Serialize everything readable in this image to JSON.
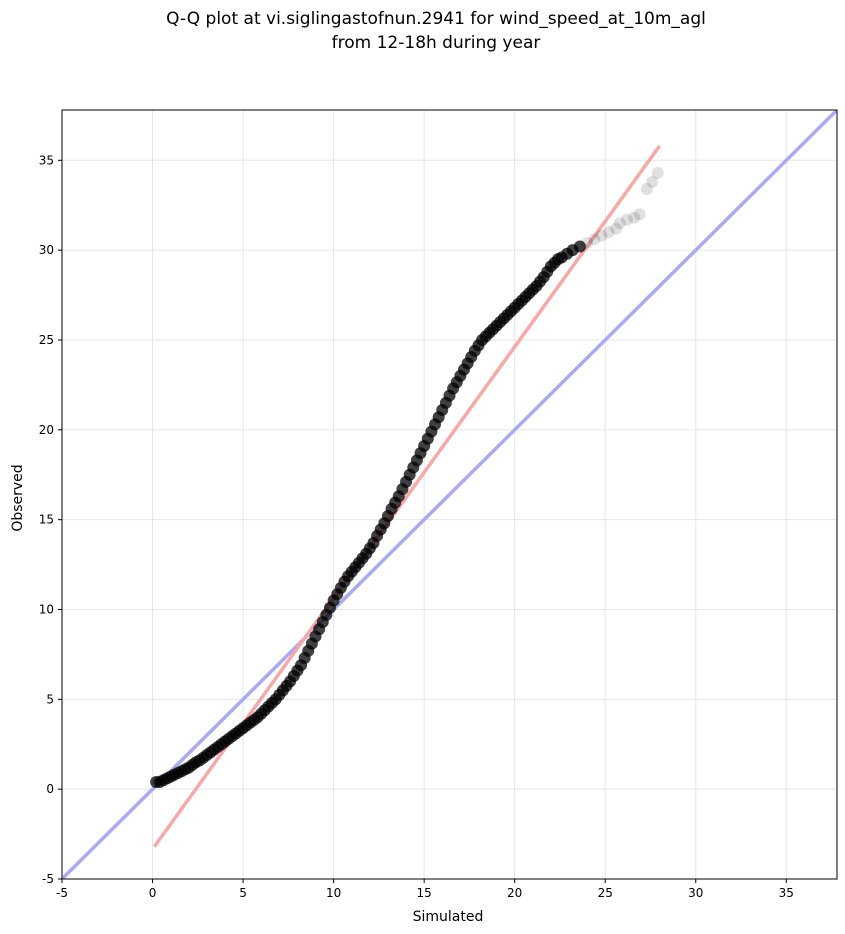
{
  "chart_data": {
    "type": "scatter",
    "title_line1": "Q-Q plot at vi.siglingastofnun.2941 for wind_speed_at_10m_agl",
    "title_line2": "from 12-18h during year",
    "xlabel": "Simulated",
    "ylabel": "Observed",
    "xlim": [
      -5,
      37.8
    ],
    "ylim": [
      -5,
      37.8
    ],
    "xticks": [
      -5,
      0,
      5,
      10,
      15,
      20,
      25,
      30,
      35
    ],
    "yticks": [
      -5,
      0,
      5,
      10,
      15,
      20,
      25,
      30,
      35
    ],
    "grid": true,
    "point_color": "#000000",
    "series": [
      {
        "name": "",
        "points": [
          [
            0.2,
            0.4
          ],
          [
            0.4,
            0.4
          ],
          [
            0.6,
            0.5
          ],
          [
            0.8,
            0.6
          ],
          [
            1.0,
            0.7
          ],
          [
            1.2,
            0.8
          ],
          [
            1.4,
            0.9
          ],
          [
            1.6,
            1.0
          ],
          [
            1.8,
            1.1
          ],
          [
            2.0,
            1.2
          ],
          [
            2.2,
            1.35
          ],
          [
            2.4,
            1.5
          ],
          [
            2.6,
            1.6
          ],
          [
            2.8,
            1.75
          ],
          [
            3.0,
            1.9
          ],
          [
            3.2,
            2.05
          ],
          [
            3.4,
            2.2
          ],
          [
            3.6,
            2.35
          ],
          [
            3.8,
            2.5
          ],
          [
            4.0,
            2.65
          ],
          [
            4.2,
            2.8
          ],
          [
            4.4,
            2.95
          ],
          [
            4.6,
            3.1
          ],
          [
            4.8,
            3.25
          ],
          [
            5.0,
            3.4
          ],
          [
            5.2,
            3.55
          ],
          [
            5.4,
            3.7
          ],
          [
            5.6,
            3.85
          ],
          [
            5.8,
            4.0
          ],
          [
            6.0,
            4.2
          ],
          [
            6.2,
            4.4
          ],
          [
            6.4,
            4.6
          ],
          [
            6.6,
            4.8
          ],
          [
            6.8,
            5.0
          ],
          [
            7.0,
            5.25
          ],
          [
            7.2,
            5.5
          ],
          [
            7.4,
            5.75
          ],
          [
            7.6,
            6.0
          ],
          [
            7.8,
            6.3
          ],
          [
            8.0,
            6.6
          ],
          [
            8.2,
            6.9
          ],
          [
            8.4,
            7.3
          ],
          [
            8.6,
            7.7
          ],
          [
            8.8,
            8.1
          ],
          [
            9.0,
            8.5
          ],
          [
            9.2,
            8.9
          ],
          [
            9.4,
            9.3
          ],
          [
            9.6,
            9.7
          ],
          [
            9.8,
            10.1
          ],
          [
            10.0,
            10.5
          ],
          [
            10.2,
            10.85
          ],
          [
            10.4,
            11.2
          ],
          [
            10.6,
            11.55
          ],
          [
            10.8,
            11.85
          ],
          [
            11.0,
            12.1
          ],
          [
            11.2,
            12.35
          ],
          [
            11.4,
            12.6
          ],
          [
            11.6,
            12.85
          ],
          [
            11.8,
            13.1
          ],
          [
            12.0,
            13.4
          ],
          [
            12.2,
            13.7
          ],
          [
            12.4,
            14.1
          ],
          [
            12.6,
            14.45
          ],
          [
            12.8,
            14.8
          ],
          [
            13.0,
            15.2
          ],
          [
            13.2,
            15.6
          ],
          [
            13.4,
            15.95
          ],
          [
            13.6,
            16.3
          ],
          [
            13.8,
            16.7
          ],
          [
            14.0,
            17.1
          ],
          [
            14.2,
            17.5
          ],
          [
            14.4,
            17.9
          ],
          [
            14.6,
            18.3
          ],
          [
            14.8,
            18.7
          ],
          [
            15.0,
            19.1
          ],
          [
            15.2,
            19.5
          ],
          [
            15.4,
            19.9
          ],
          [
            15.6,
            20.3
          ],
          [
            15.8,
            20.7
          ],
          [
            16.0,
            21.1
          ],
          [
            16.2,
            21.5
          ],
          [
            16.4,
            21.9
          ],
          [
            16.6,
            22.3
          ],
          [
            16.8,
            22.65
          ],
          [
            17.0,
            23.0
          ],
          [
            17.2,
            23.35
          ],
          [
            17.4,
            23.7
          ],
          [
            17.6,
            24.05
          ],
          [
            17.8,
            24.4
          ],
          [
            18.0,
            24.7
          ],
          [
            18.2,
            25.0
          ],
          [
            18.4,
            25.2
          ],
          [
            18.6,
            25.4
          ],
          [
            18.8,
            25.6
          ],
          [
            19.0,
            25.8
          ],
          [
            19.2,
            26.0
          ],
          [
            19.4,
            26.2
          ],
          [
            19.6,
            26.4
          ],
          [
            19.8,
            26.6
          ],
          [
            20.0,
            26.8
          ],
          [
            20.2,
            27.0
          ],
          [
            20.4,
            27.2
          ],
          [
            20.6,
            27.4
          ],
          [
            20.8,
            27.6
          ],
          [
            21.0,
            27.8
          ],
          [
            21.2,
            28.0
          ],
          [
            21.4,
            28.25
          ],
          [
            21.6,
            28.5
          ],
          [
            21.8,
            28.8
          ],
          [
            22.0,
            29.1
          ],
          [
            22.2,
            29.3
          ],
          [
            22.4,
            29.5
          ],
          [
            22.6,
            29.6
          ],
          [
            22.9,
            29.8
          ],
          [
            23.2,
            30.0
          ],
          [
            23.6,
            30.2
          ],
          [
            24.0,
            30.4
          ],
          [
            24.4,
            30.6
          ],
          [
            24.8,
            30.8
          ],
          [
            25.2,
            31.0
          ],
          [
            25.6,
            31.2
          ],
          [
            25.8,
            31.5
          ],
          [
            26.2,
            31.7
          ],
          [
            26.6,
            31.8
          ],
          [
            26.9,
            32.0
          ],
          [
            27.3,
            33.4
          ],
          [
            27.6,
            33.8
          ],
          [
            27.9,
            34.3
          ]
        ]
      }
    ],
    "reference_line": {
      "label": "",
      "color": "#aaaaf0",
      "from": [
        -5,
        -5
      ],
      "to": [
        37.8,
        37.8
      ]
    },
    "fit_line": {
      "label": "",
      "color": "#f7a8a8",
      "from": [
        0.1,
        -3.2
      ],
      "to": [
        28.0,
        35.8
      ]
    }
  }
}
